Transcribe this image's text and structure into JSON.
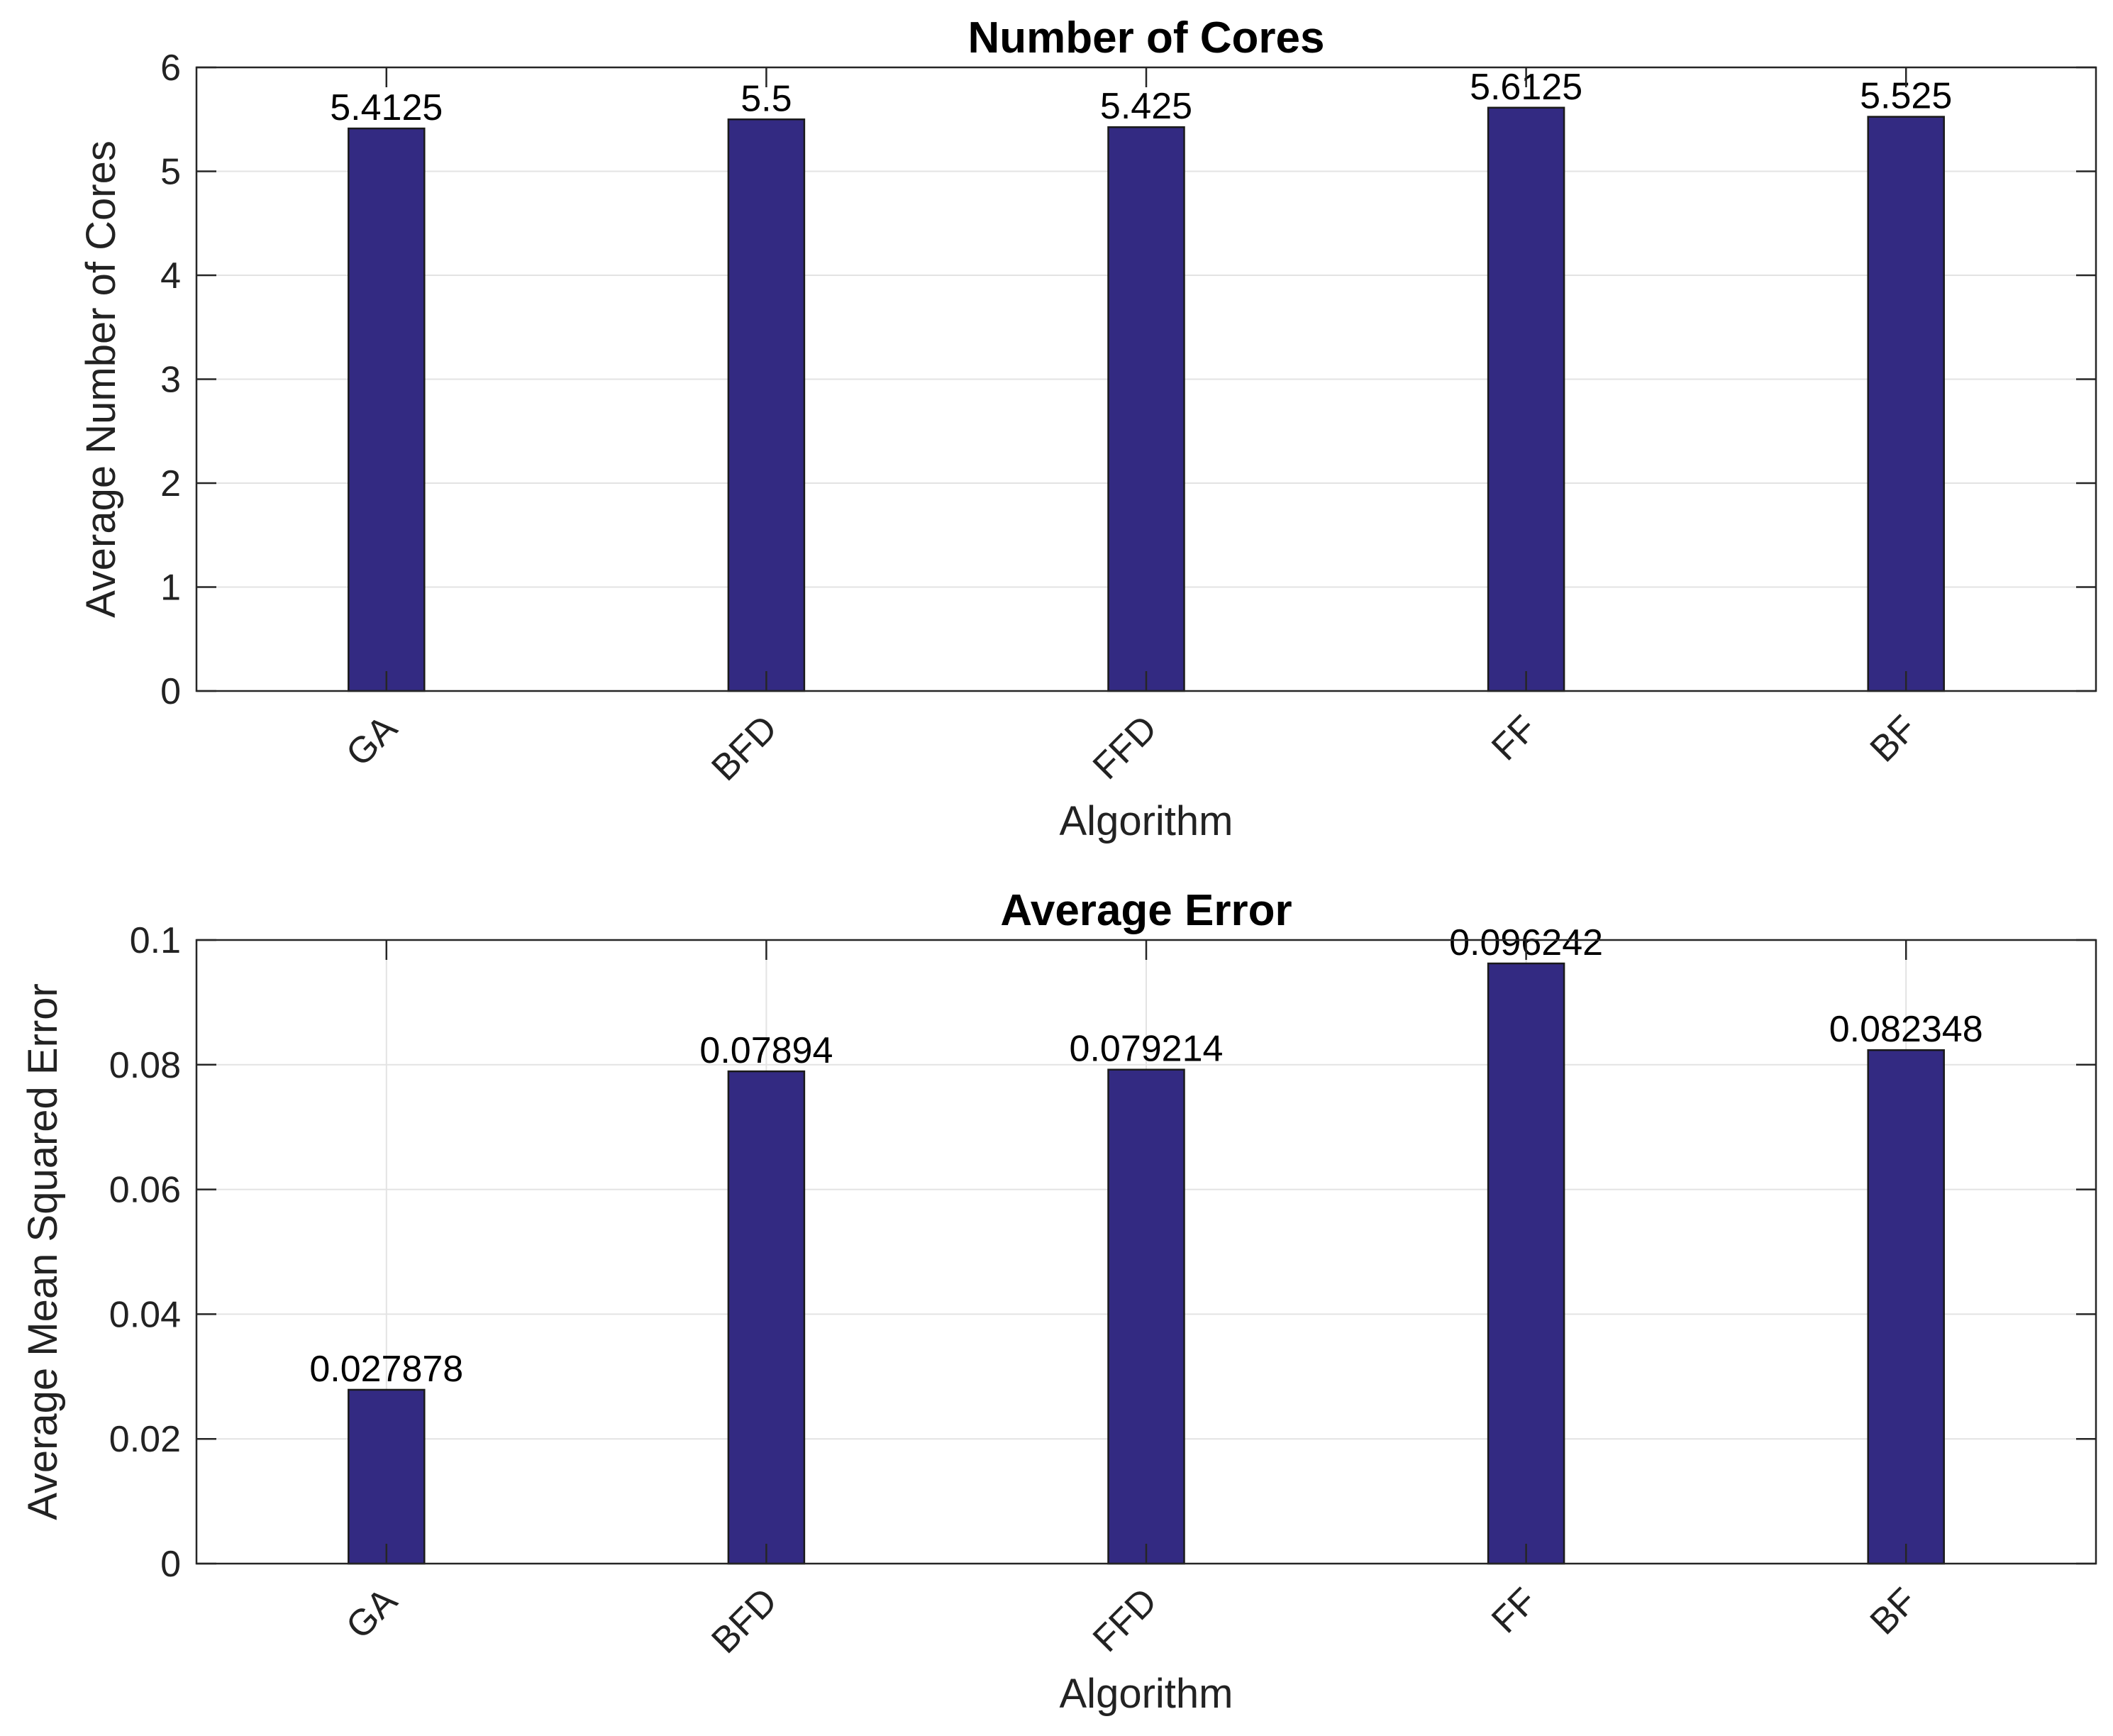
{
  "chart_data": [
    {
      "type": "bar",
      "title": "Number of Cores",
      "xlabel": "Algorithm",
      "ylabel": "Average Number of Cores",
      "categories": [
        "GA",
        "BFD",
        "FFD",
        "FF",
        "BF"
      ],
      "values": [
        5.4125,
        5.5,
        5.425,
        5.6125,
        5.525
      ],
      "data_labels": [
        "5.4125",
        "5.5",
        "5.425",
        "5.6125",
        "5.525"
      ],
      "ylim": [
        0,
        6
      ],
      "yticks": [
        0,
        1,
        2,
        3,
        4,
        5,
        6
      ],
      "ytick_labels": [
        "0",
        "1",
        "2",
        "3",
        "4",
        "5",
        "6"
      ],
      "grid": "y",
      "bar_color": "#332a82"
    },
    {
      "type": "bar",
      "title": "Average Error",
      "xlabel": "Algorithm",
      "ylabel": "Average Mean Squared Error",
      "categories": [
        "GA",
        "BFD",
        "FFD",
        "FF",
        "BF"
      ],
      "values": [
        0.027878,
        0.07894,
        0.079214,
        0.096242,
        0.082348
      ],
      "data_labels": [
        "0.027878",
        "0.07894",
        "0.079214",
        "0.096242",
        "0.082348"
      ],
      "ylim": [
        0,
        0.1
      ],
      "yticks": [
        0,
        0.02,
        0.04,
        0.06,
        0.08,
        0.1
      ],
      "ytick_labels": [
        "0",
        "0.02",
        "0.04",
        "0.06",
        "0.08",
        "0.1"
      ],
      "grid": "both",
      "bar_color": "#332a82"
    }
  ]
}
